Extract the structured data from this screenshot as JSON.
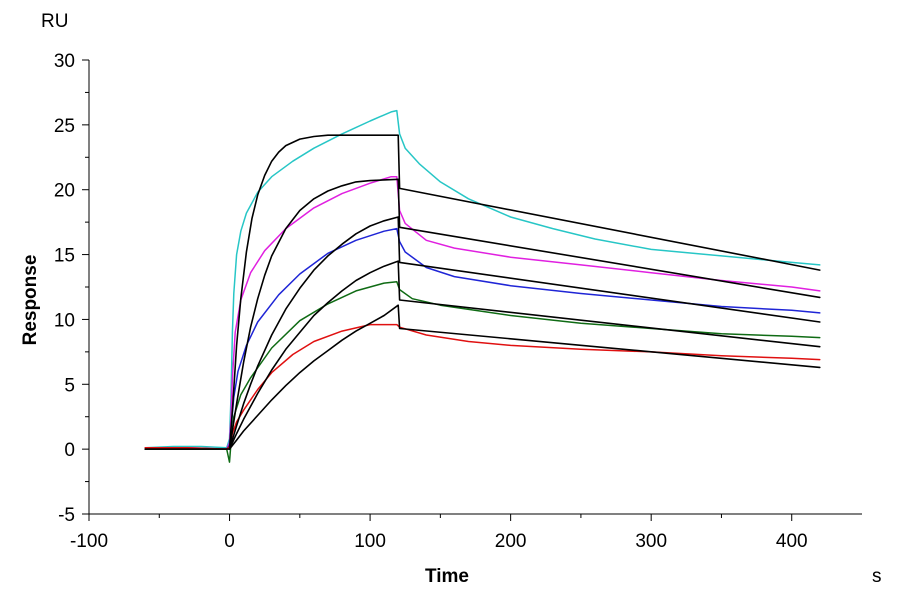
{
  "chart_data": {
    "type": "line",
    "title": "",
    "xlabel": "Time",
    "ylabel": "Response",
    "x_unit": "s",
    "y_unit": "RU",
    "xlim": [
      -100,
      450
    ],
    "ylim": [
      -5,
      30
    ],
    "x_ticks": [
      "-100",
      "0",
      "100",
      "200",
      "300",
      "400"
    ],
    "y_ticks": [
      "-5",
      "0",
      "5",
      "10",
      "15",
      "20",
      "25",
      "30"
    ],
    "grid": false,
    "legend": "none",
    "series": [
      {
        "name": "observed-cyan",
        "color": "#27c6c6",
        "kind": "observed",
        "points": [
          [
            -60,
            0.1
          ],
          [
            -40,
            0.2
          ],
          [
            -20,
            0.2
          ],
          [
            -2,
            0.1
          ],
          [
            0,
            0.8
          ],
          [
            1,
            4
          ],
          [
            2,
            9
          ],
          [
            3,
            12
          ],
          [
            5,
            15
          ],
          [
            8,
            16.8
          ],
          [
            12,
            18.2
          ],
          [
            20,
            19.8
          ],
          [
            30,
            21
          ],
          [
            45,
            22.2
          ],
          [
            60,
            23.2
          ],
          [
            80,
            24.3
          ],
          [
            100,
            25.3
          ],
          [
            115,
            26
          ],
          [
            119,
            26.1
          ],
          [
            121,
            24.3
          ],
          [
            125,
            23.2
          ],
          [
            135,
            22
          ],
          [
            150,
            20.6
          ],
          [
            170,
            19.3
          ],
          [
            200,
            17.9
          ],
          [
            230,
            17
          ],
          [
            260,
            16.2
          ],
          [
            300,
            15.4
          ],
          [
            350,
            14.9
          ],
          [
            400,
            14.4
          ],
          [
            420,
            14.2
          ]
        ]
      },
      {
        "name": "observed-magenta",
        "color": "#e020e0",
        "kind": "observed",
        "points": [
          [
            -60,
            0
          ],
          [
            -30,
            0.1
          ],
          [
            -2,
            0
          ],
          [
            0,
            0.5
          ],
          [
            1,
            2.5
          ],
          [
            2,
            5.5
          ],
          [
            4,
            9
          ],
          [
            8,
            11.5
          ],
          [
            15,
            13.6
          ],
          [
            25,
            15.3
          ],
          [
            40,
            17
          ],
          [
            60,
            18.6
          ],
          [
            80,
            19.7
          ],
          [
            100,
            20.5
          ],
          [
            115,
            21
          ],
          [
            119,
            21
          ],
          [
            121,
            18.4
          ],
          [
            125,
            17.4
          ],
          [
            140,
            16.1
          ],
          [
            160,
            15.5
          ],
          [
            200,
            14.8
          ],
          [
            250,
            14.2
          ],
          [
            300,
            13.6
          ],
          [
            350,
            13
          ],
          [
            400,
            12.5
          ],
          [
            420,
            12.2
          ]
        ]
      },
      {
        "name": "observed-blue",
        "color": "#1f25d6",
        "kind": "observed",
        "points": [
          [
            -60,
            0
          ],
          [
            -30,
            0
          ],
          [
            -2,
            0
          ],
          [
            0,
            0.3
          ],
          [
            1,
            1.5
          ],
          [
            3,
            4
          ],
          [
            6,
            6
          ],
          [
            12,
            8
          ],
          [
            20,
            9.8
          ],
          [
            35,
            11.9
          ],
          [
            50,
            13.5
          ],
          [
            70,
            15.1
          ],
          [
            90,
            16.1
          ],
          [
            110,
            16.8
          ],
          [
            119,
            17
          ],
          [
            121,
            16
          ],
          [
            125,
            15.2
          ],
          [
            140,
            14
          ],
          [
            160,
            13.3
          ],
          [
            200,
            12.6
          ],
          [
            250,
            12
          ],
          [
            300,
            11.5
          ],
          [
            350,
            11
          ],
          [
            400,
            10.7
          ],
          [
            420,
            10.5
          ]
        ]
      },
      {
        "name": "observed-green",
        "color": "#0f6b14",
        "kind": "observed",
        "points": [
          [
            -60,
            0
          ],
          [
            -30,
            0
          ],
          [
            -2,
            0
          ],
          [
            0,
            -1
          ],
          [
            1,
            0.5
          ],
          [
            3,
            2.5
          ],
          [
            8,
            4.2
          ],
          [
            15,
            5.5
          ],
          [
            30,
            7.8
          ],
          [
            50,
            9.9
          ],
          [
            70,
            11.2
          ],
          [
            90,
            12.2
          ],
          [
            110,
            12.8
          ],
          [
            119,
            12.9
          ],
          [
            121,
            12.3
          ],
          [
            130,
            11.6
          ],
          [
            150,
            11.1
          ],
          [
            200,
            10.3
          ],
          [
            250,
            9.7
          ],
          [
            300,
            9.3
          ],
          [
            350,
            8.9
          ],
          [
            400,
            8.7
          ],
          [
            420,
            8.6
          ]
        ]
      },
      {
        "name": "observed-red",
        "color": "#e01010",
        "kind": "observed",
        "points": [
          [
            -60,
            0.1
          ],
          [
            -30,
            0.1
          ],
          [
            -2,
            0
          ],
          [
            0,
            0.2
          ],
          [
            2,
            1.2
          ],
          [
            5,
            2.1
          ],
          [
            10,
            3
          ],
          [
            20,
            4.6
          ],
          [
            30,
            5.9
          ],
          [
            45,
            7.3
          ],
          [
            60,
            8.3
          ],
          [
            80,
            9.1
          ],
          [
            100,
            9.6
          ],
          [
            119,
            9.6
          ],
          [
            121,
            9.4
          ],
          [
            140,
            8.8
          ],
          [
            170,
            8.3
          ],
          [
            200,
            8
          ],
          [
            250,
            7.7
          ],
          [
            300,
            7.5
          ],
          [
            350,
            7.2
          ],
          [
            400,
            7
          ],
          [
            420,
            6.9
          ]
        ]
      },
      {
        "name": "fit-1",
        "color": "#000000",
        "kind": "fit",
        "points": [
          [
            -60,
            0
          ],
          [
            -2,
            0
          ],
          [
            0,
            0
          ],
          [
            2,
            3
          ],
          [
            5,
            8
          ],
          [
            8,
            11.6
          ],
          [
            12,
            15.2
          ],
          [
            16,
            17.8
          ],
          [
            20,
            19.6
          ],
          [
            25,
            21.1
          ],
          [
            30,
            22.2
          ],
          [
            35,
            22.9
          ],
          [
            40,
            23.4
          ],
          [
            50,
            23.9
          ],
          [
            60,
            24.1
          ],
          [
            70,
            24.2
          ],
          [
            80,
            24.2
          ],
          [
            120,
            24.2
          ],
          [
            121,
            20.1
          ],
          [
            420,
            13.8
          ]
        ]
      },
      {
        "name": "fit-2",
        "color": "#000000",
        "kind": "fit",
        "points": [
          [
            0,
            0
          ],
          [
            5,
            3.5
          ],
          [
            10,
            6.7
          ],
          [
            15,
            9.4
          ],
          [
            20,
            11.6
          ],
          [
            25,
            13.4
          ],
          [
            30,
            14.9
          ],
          [
            40,
            17
          ],
          [
            50,
            18.4
          ],
          [
            60,
            19.3
          ],
          [
            70,
            19.9
          ],
          [
            80,
            20.3
          ],
          [
            90,
            20.6
          ],
          [
            100,
            20.7
          ],
          [
            120,
            20.8
          ],
          [
            121,
            17.1
          ],
          [
            420,
            11.7
          ]
        ]
      },
      {
        "name": "fit-3",
        "color": "#000000",
        "kind": "fit",
        "points": [
          [
            0,
            0
          ],
          [
            5,
            1.8
          ],
          [
            10,
            3.5
          ],
          [
            15,
            5
          ],
          [
            20,
            6.4
          ],
          [
            30,
            8.8
          ],
          [
            40,
            10.8
          ],
          [
            50,
            12.4
          ],
          [
            60,
            13.8
          ],
          [
            70,
            14.9
          ],
          [
            80,
            15.8
          ],
          [
            90,
            16.6
          ],
          [
            100,
            17.2
          ],
          [
            110,
            17.6
          ],
          [
            120,
            17.9
          ],
          [
            121,
            14.4
          ],
          [
            420,
            9.8
          ]
        ]
      },
      {
        "name": "fit-4",
        "color": "#000000",
        "kind": "fit",
        "points": [
          [
            0,
            0
          ],
          [
            5,
            1.2
          ],
          [
            10,
            2.3
          ],
          [
            20,
            4.3
          ],
          [
            30,
            6.1
          ],
          [
            40,
            7.7
          ],
          [
            50,
            9
          ],
          [
            60,
            10.3
          ],
          [
            70,
            11.3
          ],
          [
            80,
            12.2
          ],
          [
            90,
            13
          ],
          [
            100,
            13.6
          ],
          [
            110,
            14.1
          ],
          [
            120,
            14.5
          ],
          [
            121,
            11.5
          ],
          [
            420,
            7.9
          ]
        ]
      },
      {
        "name": "fit-5",
        "color": "#000000",
        "kind": "fit",
        "points": [
          [
            0,
            0
          ],
          [
            5,
            0.7
          ],
          [
            10,
            1.4
          ],
          [
            20,
            2.6
          ],
          [
            30,
            3.8
          ],
          [
            40,
            4.9
          ],
          [
            50,
            5.9
          ],
          [
            60,
            6.8
          ],
          [
            70,
            7.6
          ],
          [
            80,
            8.4
          ],
          [
            90,
            9.1
          ],
          [
            100,
            9.7
          ],
          [
            110,
            10.3
          ],
          [
            120,
            11.1
          ],
          [
            121,
            9.3
          ],
          [
            420,
            6.3
          ]
        ]
      }
    ]
  }
}
